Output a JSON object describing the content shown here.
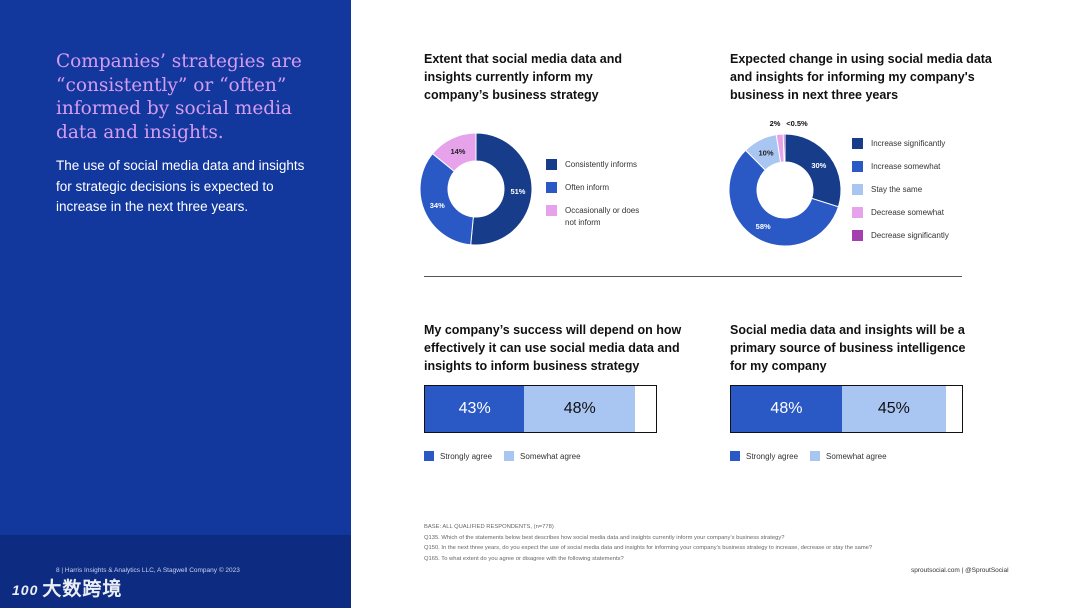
{
  "sidebar": {
    "headline": "Companies’ strategies are “consistently” or “often” informed by social media data and insights.",
    "body": "The use of social media data and insights for strategic decisions is expected to increase in the next three years.",
    "footer": "8  |  Harris Insights & Analytics LLC, A Stagwell Company © 2023",
    "watermark_logo": "100",
    "watermark_text": "大数跨境"
  },
  "notes": {
    "base": "BASE: ALL QUALIFIED RESPONDENTS, (n=778)",
    "q135": "Q135. Which of the statements below best describes how social media data and insights currently inform your company’s business strategy?",
    "q150": "Q150. In the next three years, do you expect the use of social media data and insights for informing your company’s business strategy to increase, decrease or stay the same?",
    "q165": "Q165. To what extent do you agree or disagree with the following statements?"
  },
  "footer_right": "sproutsocial.com   |   @SproutSocial",
  "chart_data": [
    {
      "type": "pie",
      "donut": true,
      "title": "Extent that social media data and insights currently inform my company’s business strategy",
      "slices": [
        {
          "label": "Consistently informs",
          "value": 51,
          "display": "51%",
          "color": "#173c8a"
        },
        {
          "label": "Often inform",
          "value": 34,
          "display": "34%",
          "color": "#2a58c4"
        },
        {
          "label": "Occasionally or does not inform",
          "value": 14,
          "display": "14%",
          "color": "#e7a2ec"
        }
      ]
    },
    {
      "type": "pie",
      "donut": true,
      "title": "Expected change in using social media data and insights for informing my company's business in next three years",
      "slices": [
        {
          "label": "Increase significantly",
          "value": 30,
          "display": "30%",
          "color": "#173c8a"
        },
        {
          "label": "Increase somewhat",
          "value": 58,
          "display": "58%",
          "color": "#2a58c4"
        },
        {
          "label": "Stay the same",
          "value": 10,
          "display": "10%",
          "color": "#a9c6f2"
        },
        {
          "label": "Decrease somewhat",
          "value": 2,
          "display": "2%",
          "color": "#e7a2ec"
        },
        {
          "label": "Decrease significantly",
          "value": 0.5,
          "display": "<0.5%",
          "color": "#a43fb0"
        }
      ]
    },
    {
      "type": "bar",
      "orientation": "horizontal-stacked",
      "title": "My company’s success will depend on how effectively it can use social media data and insights to inform business strategy",
      "series": [
        {
          "name": "Strongly agree",
          "value": 43,
          "display": "43%",
          "color": "#2a58c4"
        },
        {
          "name": "Somewhat agree",
          "value": 48,
          "display": "48%",
          "color": "#a9c6f2"
        }
      ],
      "xlim": [
        0,
        100
      ]
    },
    {
      "type": "bar",
      "orientation": "horizontal-stacked",
      "title": "Social media data and insights will be a primary source of business intelligence for my company",
      "series": [
        {
          "name": "Strongly agree",
          "value": 48,
          "display": "48%",
          "color": "#2a58c4"
        },
        {
          "name": "Somewhat agree",
          "value": 45,
          "display": "45%",
          "color": "#a9c6f2"
        }
      ],
      "xlim": [
        0,
        100
      ]
    }
  ]
}
